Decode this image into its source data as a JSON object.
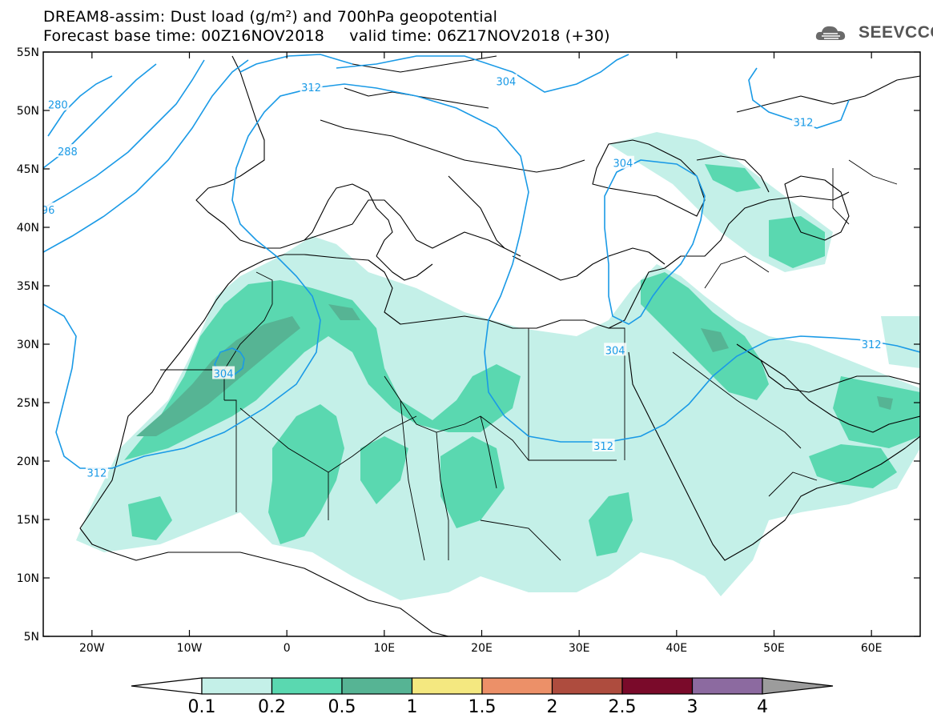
{
  "title_line1": "DREAM8-assim: Dust load (g/m²) and 700hPa geopotential",
  "title_line2": "Forecast base time: 00Z16NOV2018     valid time: 06Z17NOV2018 (+30)",
  "logo_text": "SEEVCCC",
  "map": {
    "lon_range": [
      -25,
      65
    ],
    "lat_range": [
      5,
      55
    ],
    "lat_ticks": [
      {
        "value": 55,
        "label": "55N"
      },
      {
        "value": 50,
        "label": "50N"
      },
      {
        "value": 45,
        "label": "45N"
      },
      {
        "value": 40,
        "label": "40N"
      },
      {
        "value": 35,
        "label": "35N"
      },
      {
        "value": 30,
        "label": "30N"
      },
      {
        "value": 25,
        "label": "25N"
      },
      {
        "value": 20,
        "label": "20N"
      },
      {
        "value": 15,
        "label": "15N"
      },
      {
        "value": 10,
        "label": "10N"
      },
      {
        "value": 5,
        "label": "5N"
      }
    ],
    "lon_ticks": [
      {
        "value": -20,
        "label": "20W"
      },
      {
        "value": -10,
        "label": "10W"
      },
      {
        "value": 0,
        "label": "0"
      },
      {
        "value": 10,
        "label": "10E"
      },
      {
        "value": 20,
        "label": "20E"
      },
      {
        "value": 30,
        "label": "30E"
      },
      {
        "value": 40,
        "label": "40E"
      },
      {
        "value": 50,
        "label": "50E"
      },
      {
        "value": 60,
        "label": "60E"
      }
    ],
    "contour_labels": [
      {
        "text": "280",
        "lon": -23.5,
        "lat": 50.5
      },
      {
        "text": "288",
        "lon": -22.5,
        "lat": 46.5
      },
      {
        "text": "96",
        "lon": -24.5,
        "lat": 41.5
      },
      {
        "text": "312",
        "lon": 2.5,
        "lat": 52.0
      },
      {
        "text": "304",
        "lon": 22.5,
        "lat": 52.5
      },
      {
        "text": "312",
        "lon": 53.0,
        "lat": 49.0
      },
      {
        "text": "304",
        "lon": 34.5,
        "lat": 45.5
      },
      {
        "text": "304",
        "lon": -6.5,
        "lat": 27.5
      },
      {
        "text": "304",
        "lon": 33.7,
        "lat": 29.5
      },
      {
        "text": "312",
        "lon": 60.0,
        "lat": 30.0
      },
      {
        "text": "312",
        "lon": 32.5,
        "lat": 21.3
      },
      {
        "text": "312",
        "lon": -19.5,
        "lat": 19.0
      }
    ]
  },
  "colorbar": {
    "labels": [
      "0.1",
      "0.2",
      "0.5",
      "1",
      "1.5",
      "2",
      "2.5",
      "3",
      "4"
    ],
    "colors": [
      "#c4f0e8",
      "#5ad8b0",
      "#56b494",
      "#f4e880",
      "#ec9068",
      "#ae4c3e",
      "#7a0a2a",
      "#8c6aa0"
    ],
    "low_color": "#ffffff",
    "high_color": "#9c9c9c"
  },
  "colors": {
    "contour": "#1a9ae6",
    "coast": "#000000"
  }
}
